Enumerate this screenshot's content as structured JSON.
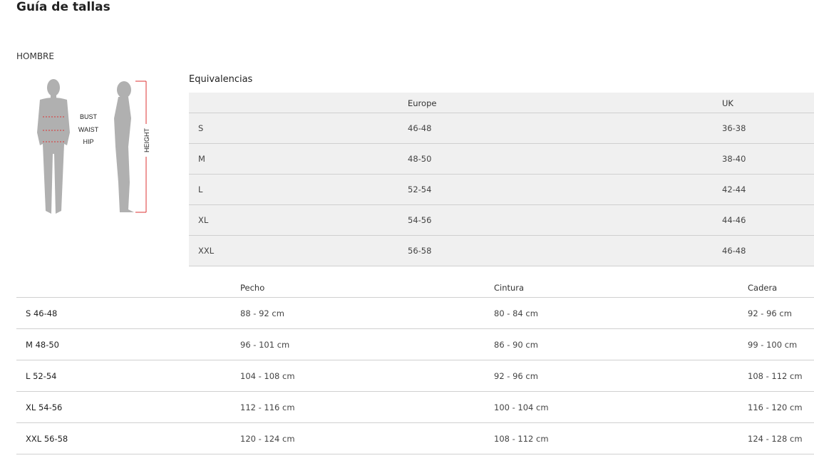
{
  "title": "Guía de tallas",
  "section": "HOMBRE",
  "figure": {
    "labels": [
      "BUST",
      "WAIST",
      "HIP"
    ],
    "height_label": "HEIGHT"
  },
  "equivalences": {
    "title": "Equivalencias",
    "headers": [
      "",
      "Europe",
      "UK"
    ],
    "rows": [
      [
        "S",
        "46-48",
        "36-38"
      ],
      [
        "M",
        "48-50",
        "38-40"
      ],
      [
        "L",
        "52-54",
        "42-44"
      ],
      [
        "XL",
        "54-56",
        "44-46"
      ],
      [
        "XXL",
        "56-58",
        "46-48"
      ]
    ]
  },
  "measurements": {
    "headers": [
      "",
      "Pecho",
      "Cintura",
      "Cadera"
    ],
    "rows": [
      [
        "S 46-48",
        "88 - 92 cm",
        "80 - 84 cm",
        "92 - 96 cm"
      ],
      [
        "M 48-50",
        "96 - 101 cm",
        "86 - 90 cm",
        "99 - 100 cm"
      ],
      [
        "L 52-54",
        "104 - 108 cm",
        "92 - 96 cm",
        "108 - 112 cm"
      ],
      [
        "XL 54-56",
        "112 - 116 cm",
        "100 - 104 cm",
        "116 - 120 cm"
      ],
      [
        "XXL 56-58",
        "120 - 124 cm",
        "108 - 112 cm",
        "124 - 128 cm"
      ]
    ]
  }
}
